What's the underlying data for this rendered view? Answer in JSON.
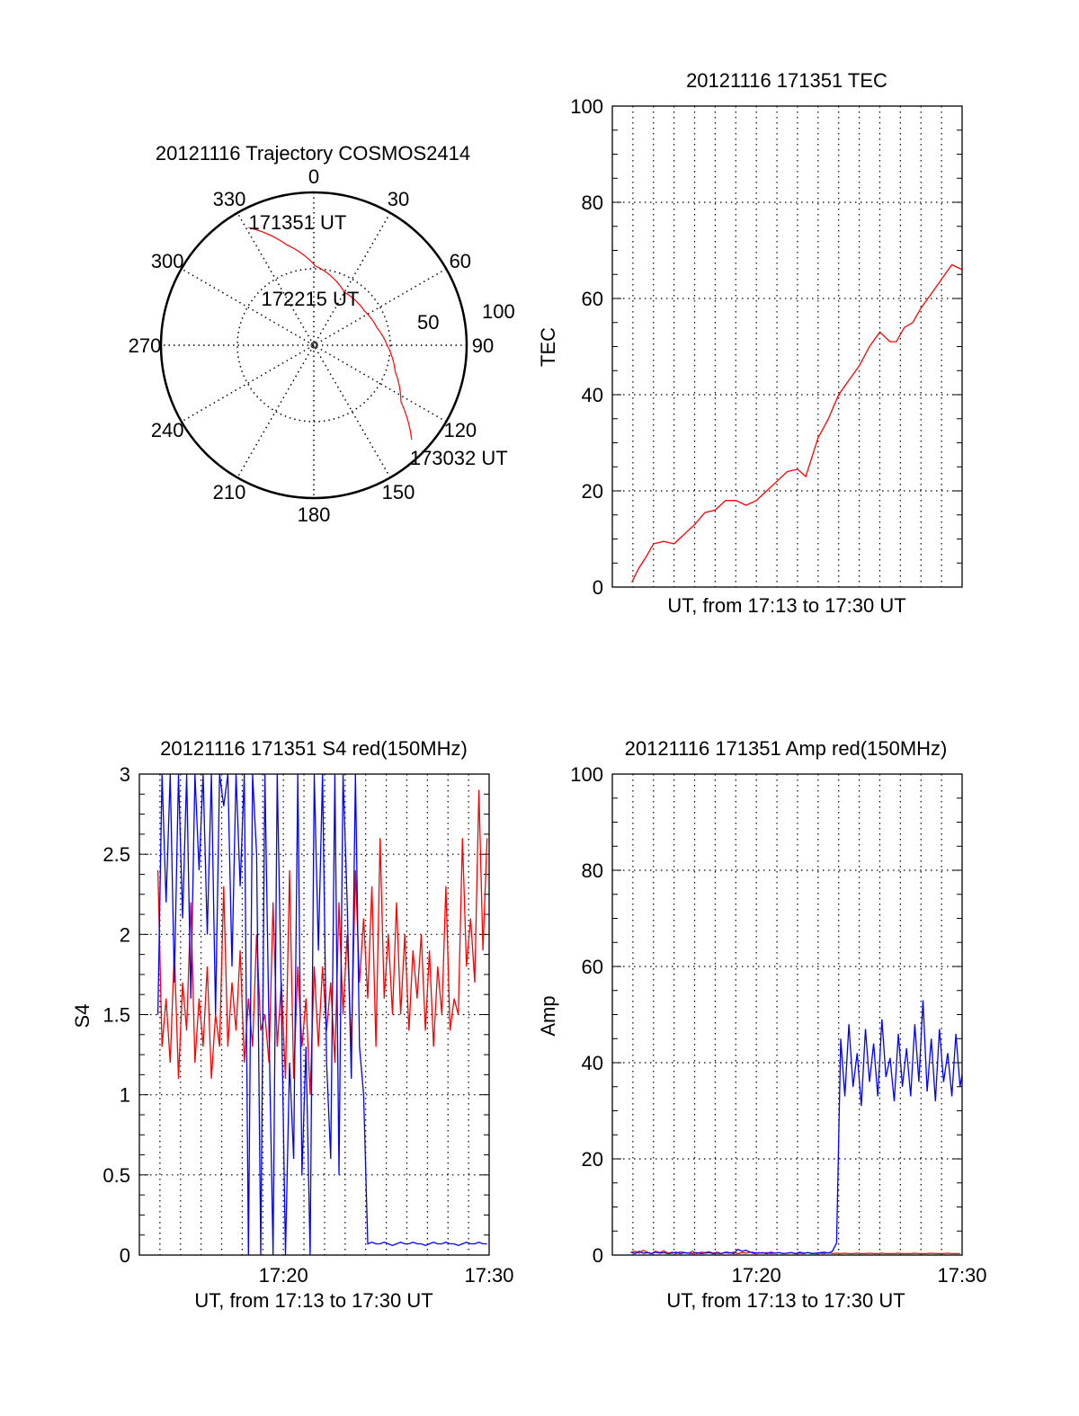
{
  "chart_data": [
    {
      "type": "polar",
      "title": "20121116 Trajectory COSMOS2414",
      "angle_labels": [
        "0",
        "30",
        "60",
        "90",
        "120",
        "150",
        "180",
        "210",
        "240",
        "270",
        "300",
        "330"
      ],
      "radial_labels": [
        "50",
        "100"
      ],
      "radial_range": [
        0,
        100
      ],
      "series_color": "#ff0000",
      "trajectory": [
        [
          331,
          88
        ],
        [
          345,
          68
        ],
        [
          1,
          52
        ],
        [
          30,
          40
        ],
        [
          56,
          40
        ],
        [
          75,
          43
        ],
        [
          90,
          48
        ],
        [
          108,
          56
        ],
        [
          123,
          68
        ],
        [
          134,
          89
        ]
      ],
      "annotations": [
        {
          "text": "171351 UT",
          "at": [
            331,
            88
          ]
        },
        {
          "text": "172215 UT",
          "at": [
            56,
            40
          ]
        },
        {
          "text": "173032 UT",
          "at": [
            134,
            89
          ]
        }
      ]
    },
    {
      "type": "line",
      "title": "20121116 171351 TEC",
      "xlabel": "UT, from 17:13 to 17:30 UT",
      "ylabel": "TEC",
      "xlim": [
        0,
        17
      ],
      "ylim": [
        0,
        100
      ],
      "yticks": [
        "0",
        "20",
        "40",
        "60",
        "80",
        "100"
      ],
      "xticks": [],
      "grid": true,
      "series": [
        {
          "name": "TEC",
          "color": "#ff0000",
          "points": [
            [
              0.95,
              1
            ],
            [
              1.3,
              4
            ],
            [
              1.6,
              6
            ],
            [
              2,
              9
            ],
            [
              2.5,
              9.5
            ],
            [
              3,
              9
            ],
            [
              3.5,
              11
            ],
            [
              4,
              13
            ],
            [
              4.5,
              15.5
            ],
            [
              5,
              16
            ],
            [
              5.5,
              18
            ],
            [
              6,
              18
            ],
            [
              6.5,
              17
            ],
            [
              7,
              18
            ],
            [
              7.5,
              20
            ],
            [
              8,
              22
            ],
            [
              8.5,
              24
            ],
            [
              9,
              24.5
            ],
            [
              9.4,
              23
            ],
            [
              9.7,
              27
            ],
            [
              10,
              31
            ],
            [
              10.5,
              35
            ],
            [
              11,
              40
            ],
            [
              11.5,
              43
            ],
            [
              12,
              46
            ],
            [
              12.5,
              50
            ],
            [
              13,
              53
            ],
            [
              13.5,
              51
            ],
            [
              13.8,
              51
            ],
            [
              14.2,
              54
            ],
            [
              14.6,
              55
            ],
            [
              15,
              58
            ],
            [
              15.5,
              61
            ],
            [
              16,
              64
            ],
            [
              16.5,
              67
            ],
            [
              17,
              66
            ]
          ]
        }
      ]
    },
    {
      "type": "line",
      "title": "20121116 171351 S4 red(150MHz)",
      "xlabel": "UT, from 17:13 to 17:30 UT",
      "ylabel": "S4",
      "xlim": [
        0,
        17
      ],
      "ylim": [
        0,
        3
      ],
      "yticks": [
        "0",
        "0.5",
        "1",
        "1.5",
        "2",
        "2.5",
        "3"
      ],
      "xticks": [
        {
          "t": 7,
          "label": "17:20"
        },
        {
          "t": 17,
          "label": "17:30"
        }
      ],
      "grid": true,
      "t_start": 0.9,
      "t_step": 0.2,
      "series": [
        {
          "name": "red",
          "color": "#ff0000",
          "values": [
            2.4,
            1.3,
            1.6,
            1.2,
            1.9,
            1.1,
            1.7,
            1.4,
            2.2,
            1.2,
            1.6,
            1.3,
            1.8,
            1.1,
            1.5,
            1.3,
            2.3,
            1.3,
            1.7,
            1.4,
            1.9,
            1.2,
            1.6,
            1.3,
            2.0,
            1.4,
            1.5,
            1.2,
            2.2,
            1.3,
            1.7,
            1.1,
            2.4,
            1.1,
            1.8,
            1.3,
            1.6,
            1.0,
            1.8,
            1.3,
            1.8,
            1.4,
            1.7,
            1.2,
            2.2,
            1.5,
            2.0,
            1.3,
            2.4,
            1.7,
            2.1,
            1.6,
            2.3,
            1.3,
            2.6,
            1.6,
            2.0,
            1.5,
            2.2,
            1.5,
            2.0,
            1.4,
            1.9,
            1.6,
            2.0,
            1.4,
            1.9,
            1.3,
            1.8,
            1.5,
            2.3,
            1.4,
            1.6,
            1.5,
            2.6,
            1.8,
            2.1,
            1.7,
            2.9,
            1.9,
            2.6
          ]
        },
        {
          "name": "blue",
          "color": "#0000ff",
          "values": [
            1.5,
            3,
            2.2,
            3,
            1.7,
            3,
            2.1,
            3,
            1.6,
            3,
            2.4,
            3,
            2.0,
            3,
            1.5,
            3,
            2.8,
            3,
            1.8,
            3,
            2.3,
            3,
            0,
            3,
            2.5,
            0,
            3,
            1.4,
            0,
            3,
            1.6,
            0,
            1.2,
            0.6,
            3,
            0.5,
            1.3,
            0,
            3,
            1.9,
            3,
            1.2,
            0.6,
            3,
            0.5,
            3,
            2.2,
            1.1,
            3,
            1.3,
            1.0,
            0.07,
            0.08,
            0.07,
            0.07,
            0.08,
            0.07,
            0.06,
            0.07,
            0.08,
            0.07,
            0.07,
            0.08,
            0.07,
            0.07,
            0.06,
            0.07,
            0.08,
            0.07,
            0.07,
            0.08,
            0.07,
            0.07,
            0.06,
            0.07,
            0.08,
            0.07,
            0.07,
            0.08,
            0.07,
            0.07
          ]
        }
      ]
    },
    {
      "type": "line",
      "title": "20121116 171351 Amp red(150MHz)",
      "xlabel": "UT, from 17:13 to 17:30 UT",
      "ylabel": "Amp",
      "xlim": [
        0,
        17
      ],
      "ylim": [
        0,
        100
      ],
      "yticks": [
        "0",
        "20",
        "40",
        "60",
        "80",
        "100"
      ],
      "xticks": [
        {
          "t": 7,
          "label": "17:20"
        },
        {
          "t": 17,
          "label": "17:30"
        }
      ],
      "grid": true,
      "t_start": 0.9,
      "t_step": 0.2,
      "series": [
        {
          "name": "red",
          "color": "#ff0000",
          "values": [
            0.5,
            0.8,
            0.4,
            1.0,
            0.6,
            0.3,
            0.8,
            0.5,
            0.9,
            0.4,
            0.6,
            0.3,
            0.7,
            0.5,
            0.4,
            0.8,
            0.3,
            0.6,
            0.5,
            0.7,
            0.4,
            0.6,
            0.3,
            0.5,
            0.4,
            0.6,
            0.3,
            0.5,
            0.4,
            0.6,
            0.3,
            0.5,
            0.4,
            0.5,
            0.3,
            0.4,
            0.5,
            0.3,
            0.4,
            0.5,
            0.3,
            0.4,
            0.3,
            0.5,
            0.4,
            0.3,
            0.4,
            0.3,
            0.5,
            0.3,
            0.4,
            0.3,
            0.4,
            0.3,
            0.3,
            0.4,
            0.3,
            0.3,
            0.4,
            0.3,
            0.3,
            0.4,
            0.3,
            0.3,
            0.3,
            0.4,
            0.3,
            0.3,
            0.3,
            0.4,
            0.3,
            0.3,
            0.3,
            0.4,
            0.3,
            0.3,
            0.3,
            0.4,
            0.3,
            0.3,
            0.3
          ]
        },
        {
          "name": "blue",
          "color": "#0000ff",
          "values": [
            0.6,
            0.3,
            0.8,
            0.4,
            0.5,
            0.3,
            0.6,
            0.4,
            0.5,
            0.3,
            0.4,
            0.6,
            0.3,
            0.5,
            0.4,
            0.3,
            0.5,
            0.3,
            0.4,
            0.5,
            0.3,
            0.4,
            0.3,
            0.6,
            0.5,
            0.3,
            1.2,
            0.8,
            1.0,
            0.6,
            0.5,
            0.4,
            0.5,
            0.3,
            0.6,
            0.4,
            0.5,
            0.3,
            0.4,
            0.5,
            0.3,
            0.6,
            0.4,
            0.5,
            0.3,
            0.4,
            0.5,
            0.6,
            0.4,
            0.8,
            2.5,
            45,
            33,
            48,
            35,
            42,
            31,
            47,
            36,
            44,
            33,
            49,
            37,
            41,
            32,
            46,
            35,
            43,
            33,
            48,
            36,
            53,
            34,
            45,
            32,
            47,
            36,
            42,
            33,
            46,
            35,
            40
          ]
        }
      ]
    }
  ]
}
